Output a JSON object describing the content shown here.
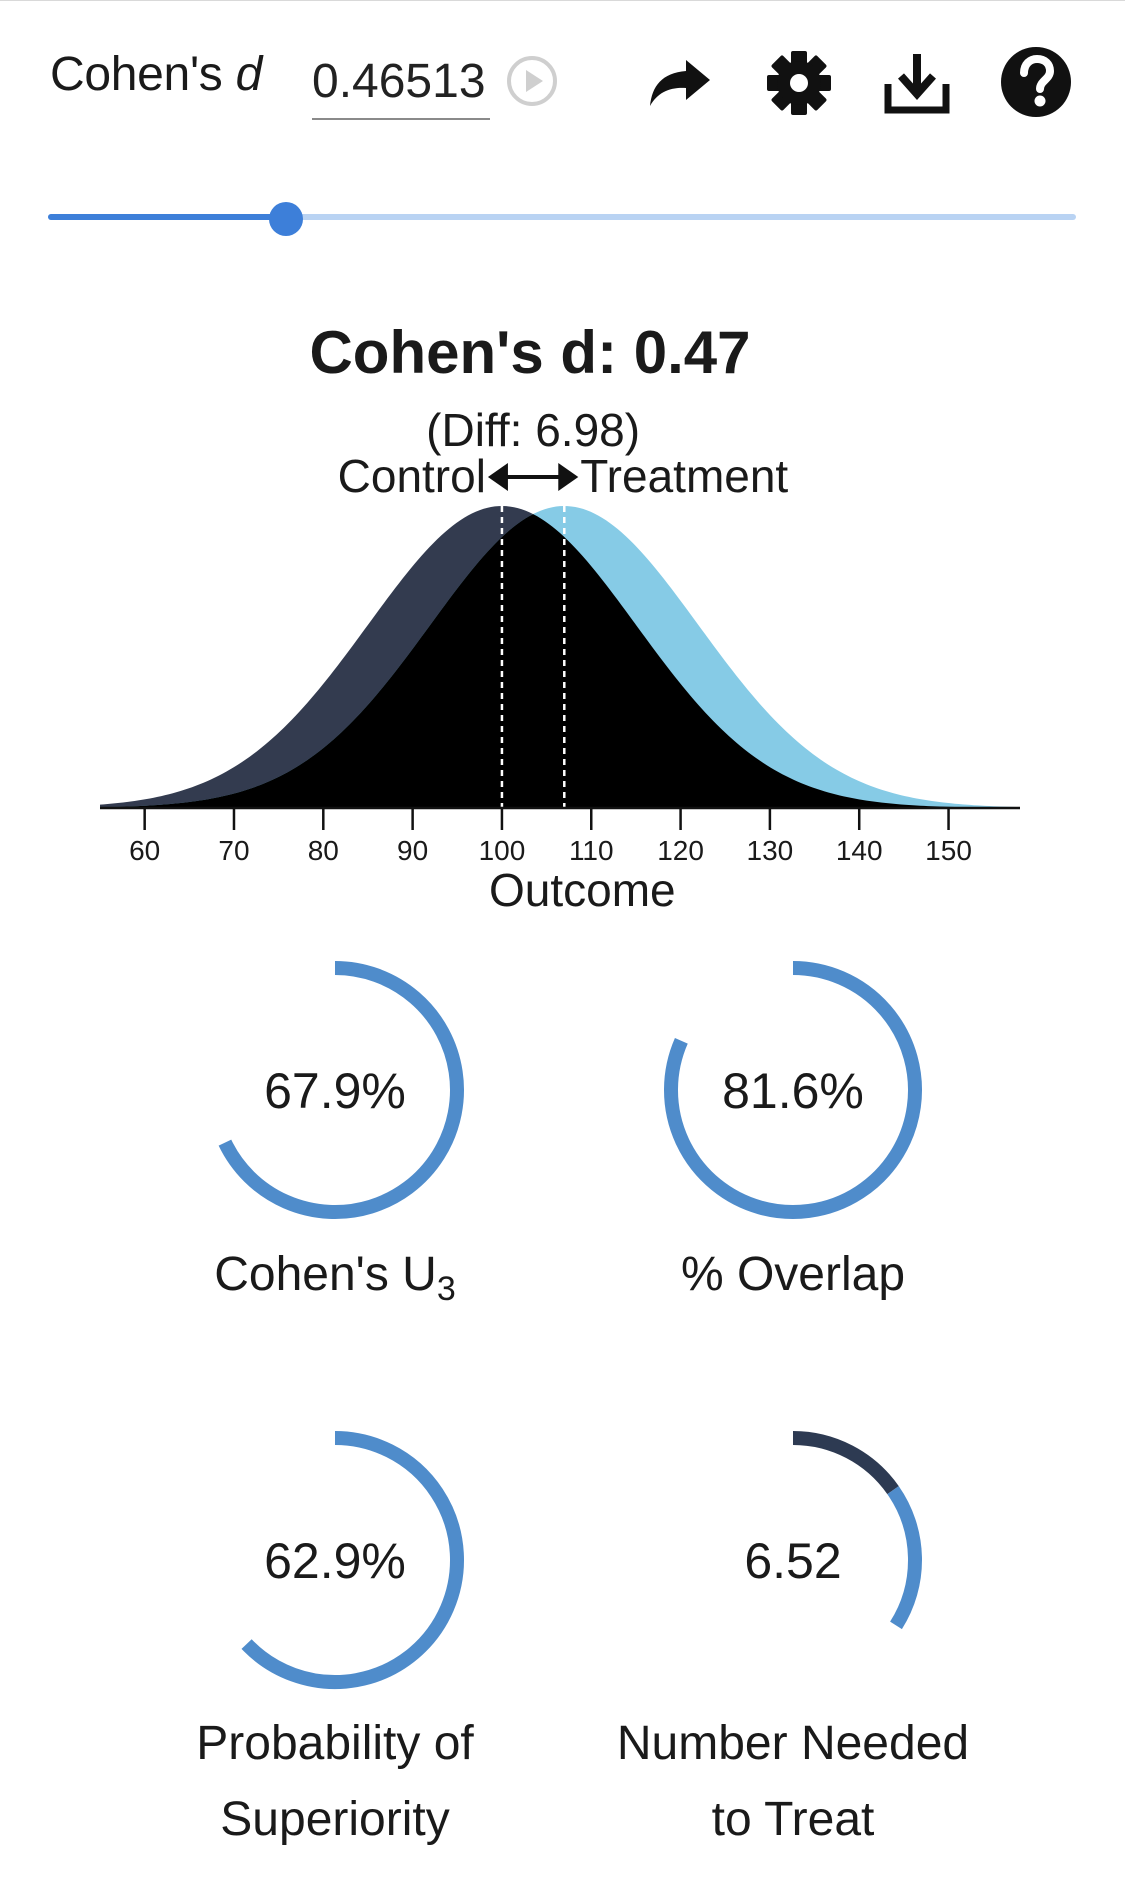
{
  "header": {
    "cohen_label": "Cohen's",
    "cohen_symbol": "d",
    "d_input_value": "0.46513",
    "icons": [
      "play-circle-icon",
      "share-icon",
      "gear-icon",
      "download-icon",
      "help-icon"
    ]
  },
  "slider": {
    "fraction": 0.232
  },
  "chart_data": {
    "type": "area",
    "title": "Cohen's d: 0.47",
    "diff_label": "(Diff: 6.98)",
    "xlabel": "Outcome",
    "ylabel": "",
    "xlim": [
      55,
      158
    ],
    "ticks": [
      60,
      70,
      80,
      90,
      100,
      110,
      120,
      130,
      140,
      150
    ],
    "sd": 15,
    "series": [
      {
        "name": "Control",
        "mean": 100,
        "color": "#333b4f"
      },
      {
        "name": "Treatment",
        "mean": 106.98,
        "color": "#86cbe6"
      }
    ],
    "overlap_color": "#000000"
  },
  "metrics": [
    {
      "value": "67.9%",
      "fraction": 0.679,
      "label": "Cohen's U",
      "label_sub": "3"
    },
    {
      "value": "81.6%",
      "fraction": 0.816,
      "label": "% Overlap",
      "label_sub": ""
    },
    {
      "value": "62.9%",
      "fraction": 0.629,
      "label_line1": "Probability of",
      "label_line2": "Superiority"
    },
    {
      "value": "6.52",
      "fraction": 0.153,
      "label_line1": "Number Needed",
      "label_line2": "to Treat"
    }
  ],
  "colors": {
    "accent": "#3d7fd9",
    "donut": "#4f8ccb",
    "nnt_dark": "#2d3a52"
  }
}
